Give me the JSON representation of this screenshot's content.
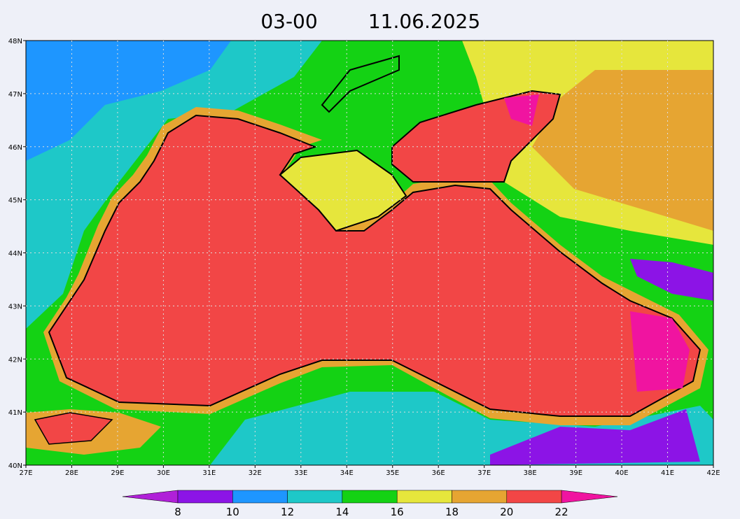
{
  "title": {
    "time": "03-00",
    "date": "11.06.2025"
  },
  "x_axis": {
    "labels": [
      "27E",
      "28E",
      "29E",
      "30E",
      "31E",
      "32E",
      "33E",
      "34E",
      "35E",
      "36E",
      "37E",
      "38E",
      "39E",
      "40E",
      "41E",
      "42E"
    ]
  },
  "y_axis": {
    "labels": [
      "40N",
      "41N",
      "42N",
      "43N",
      "44N",
      "45N",
      "46N",
      "47N",
      "48N"
    ]
  },
  "colorbar": {
    "labels": [
      8,
      10,
      12,
      14,
      16,
      18,
      20,
      22
    ],
    "colors": [
      "#b020d8",
      "#8c14e6",
      "#1e96ff",
      "#1ec8c8",
      "#14d214",
      "#e6e63c",
      "#e6a532",
      "#f24646",
      "#f014a0"
    ]
  }
}
